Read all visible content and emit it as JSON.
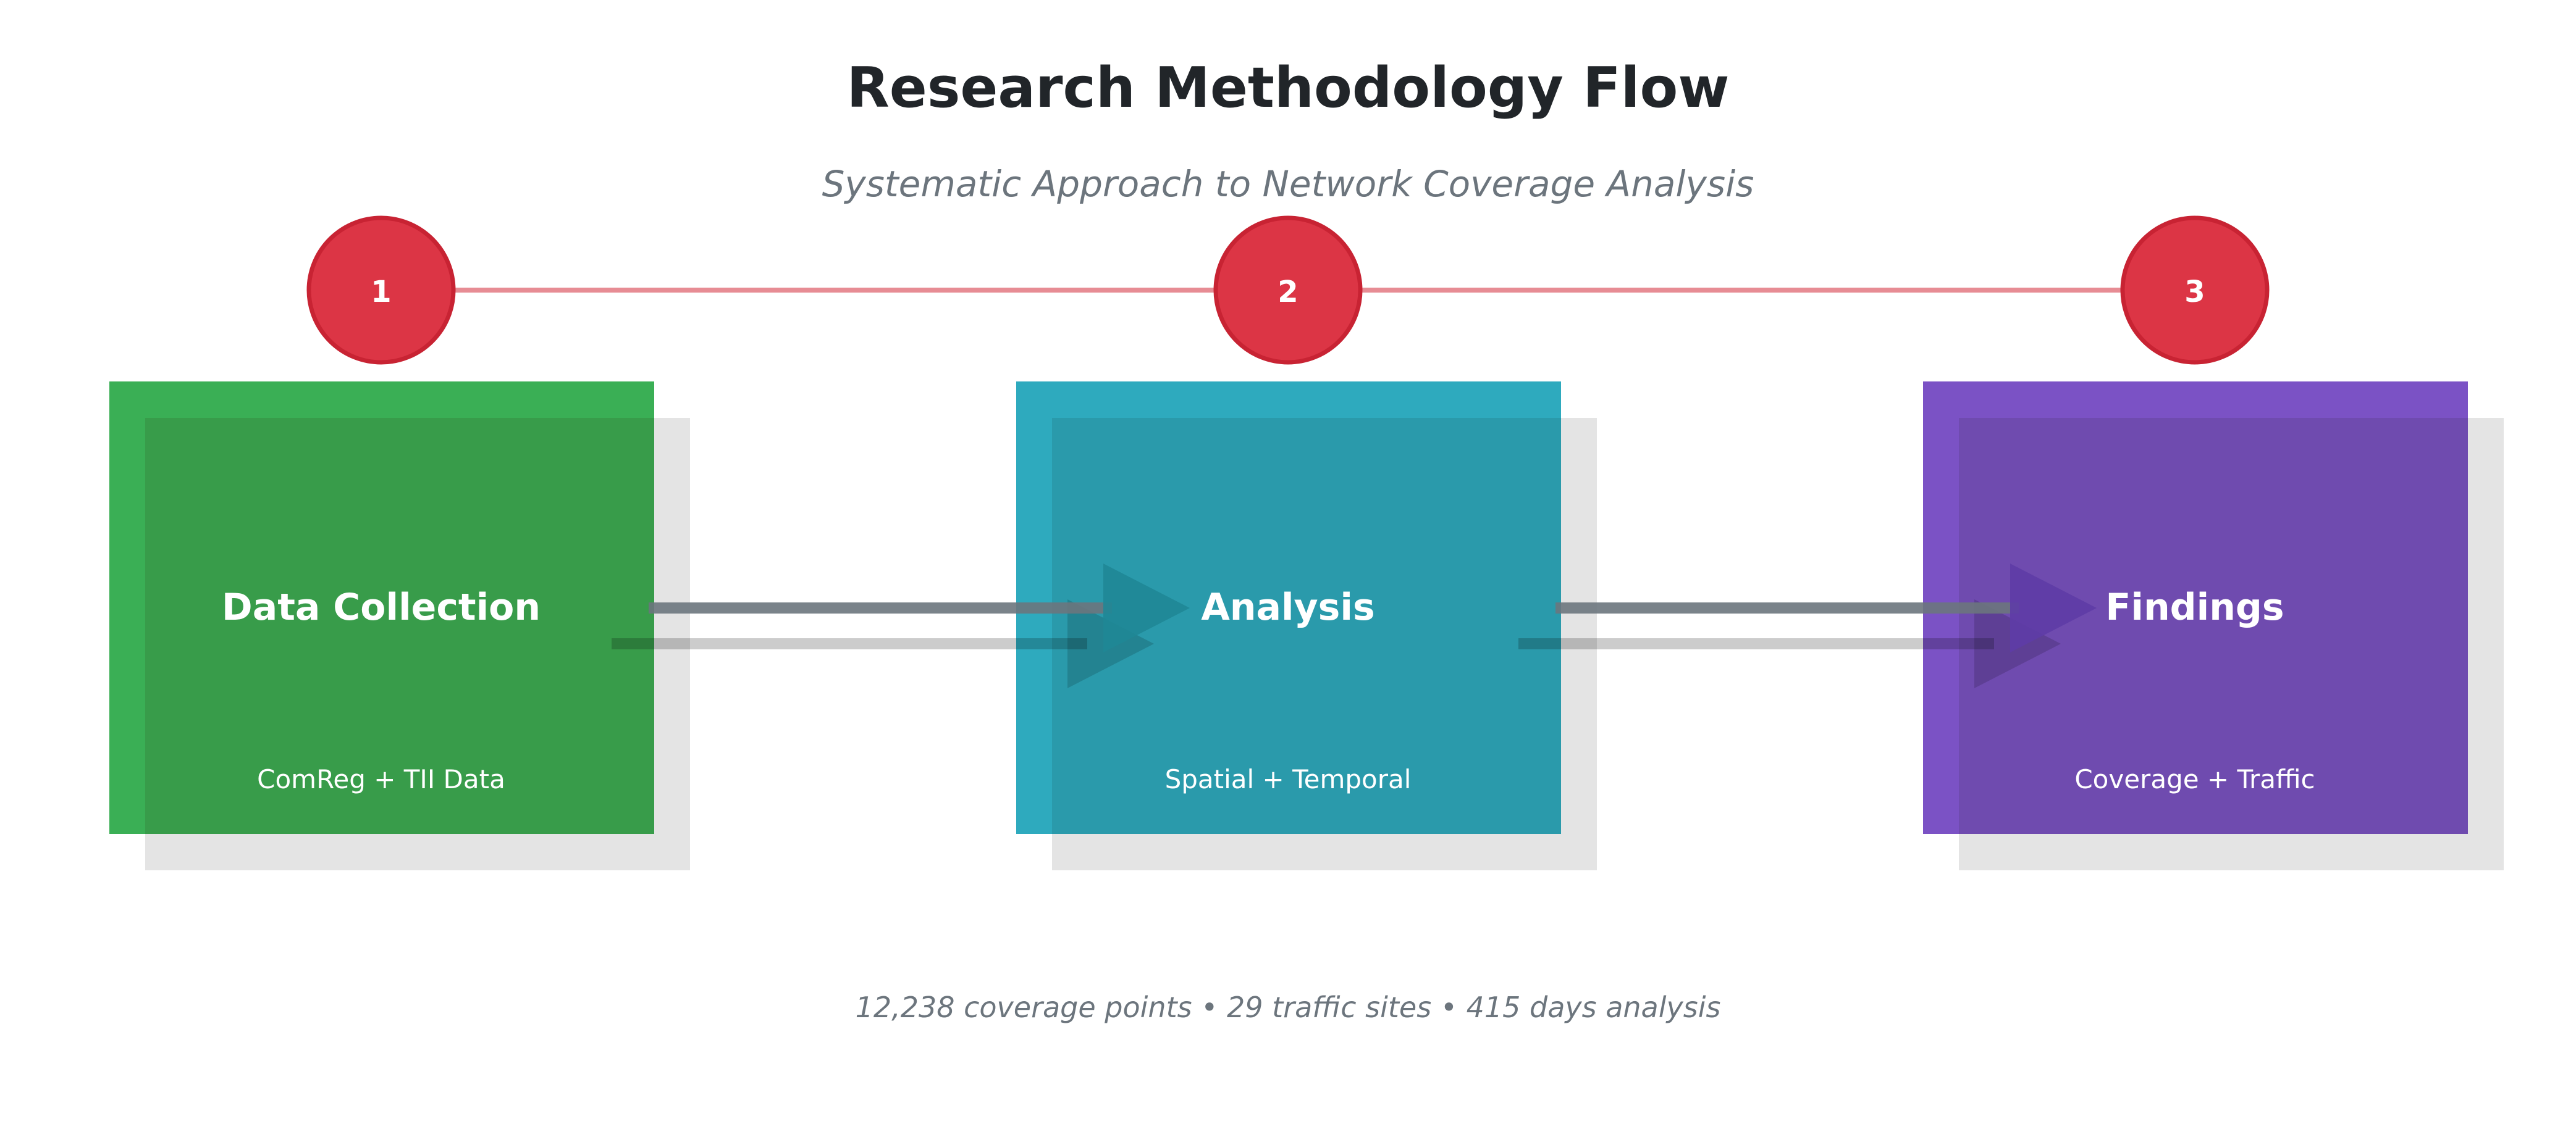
{
  "title": "Research Methodology Flow",
  "subtitle": "Systematic Approach to Network Coverage Analysis",
  "footer": "12,238 coverage points • 29 traffic sites • 415 days analysis",
  "colors": {
    "title": "#212529",
    "subtitle": "#6c757d",
    "step_circle": "#dc3545",
    "step_circle_border": "#c82333",
    "connector_line": "#e78c94",
    "arrow": "#6c757d",
    "shadow": "#e4e4e4",
    "text_light": "#ffffff"
  },
  "steps": [
    {
      "number": "1",
      "title": "Data Collection",
      "subtitle": "ComReg + TII Data",
      "color": "#3aaf55",
      "inner_color": "#389c4a"
    },
    {
      "number": "2",
      "title": "Analysis",
      "subtitle": "Spatial + Temporal",
      "color": "#2eaabe",
      "inner_color": "#2a9aab"
    },
    {
      "number": "3",
      "title": "Findings",
      "subtitle": "Coverage + Traffic",
      "color": "#7b52c5",
      "inner_color": "#6f4baf"
    }
  ]
}
